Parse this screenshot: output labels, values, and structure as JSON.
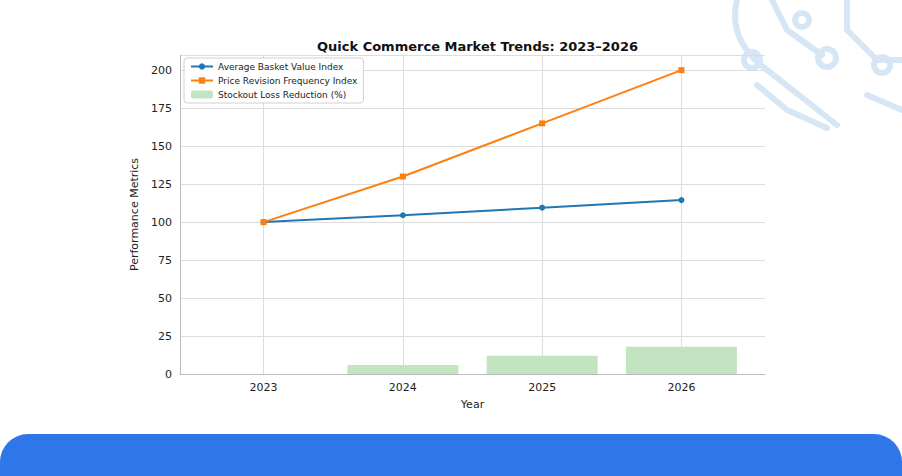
{
  "chart_data": {
    "type": "combo",
    "title": "Quick Commerce Market Trends: 2023–2026",
    "x_label": "Year",
    "y_label": "Performance Metrics",
    "x": [
      2023,
      2024,
      2025,
      2026
    ],
    "xlim": [
      2022.4,
      2026.6
    ],
    "xticks": [
      2023,
      2024,
      2025,
      2026
    ],
    "ylim": [
      0,
      210
    ],
    "yticks": [
      0,
      25,
      50,
      75,
      100,
      125,
      150,
      175,
      200
    ],
    "grid": true,
    "legend": "upper left",
    "series": [
      {
        "name": "Average Basket Value Index",
        "type": "line",
        "color": "#1f77b4",
        "marker": "circle",
        "values": [
          100,
          104.5,
          109.5,
          114.5
        ]
      },
      {
        "name": "Price Revision Frequency Index",
        "type": "line",
        "color": "#ff7f0e",
        "marker": "square",
        "values": [
          100,
          130,
          165,
          200
        ]
      },
      {
        "name": "Stockout Loss Reduction (%)",
        "type": "bar",
        "color": "#c3e4c1",
        "values": [
          0,
          6,
          12,
          18
        ]
      }
    ]
  }
}
